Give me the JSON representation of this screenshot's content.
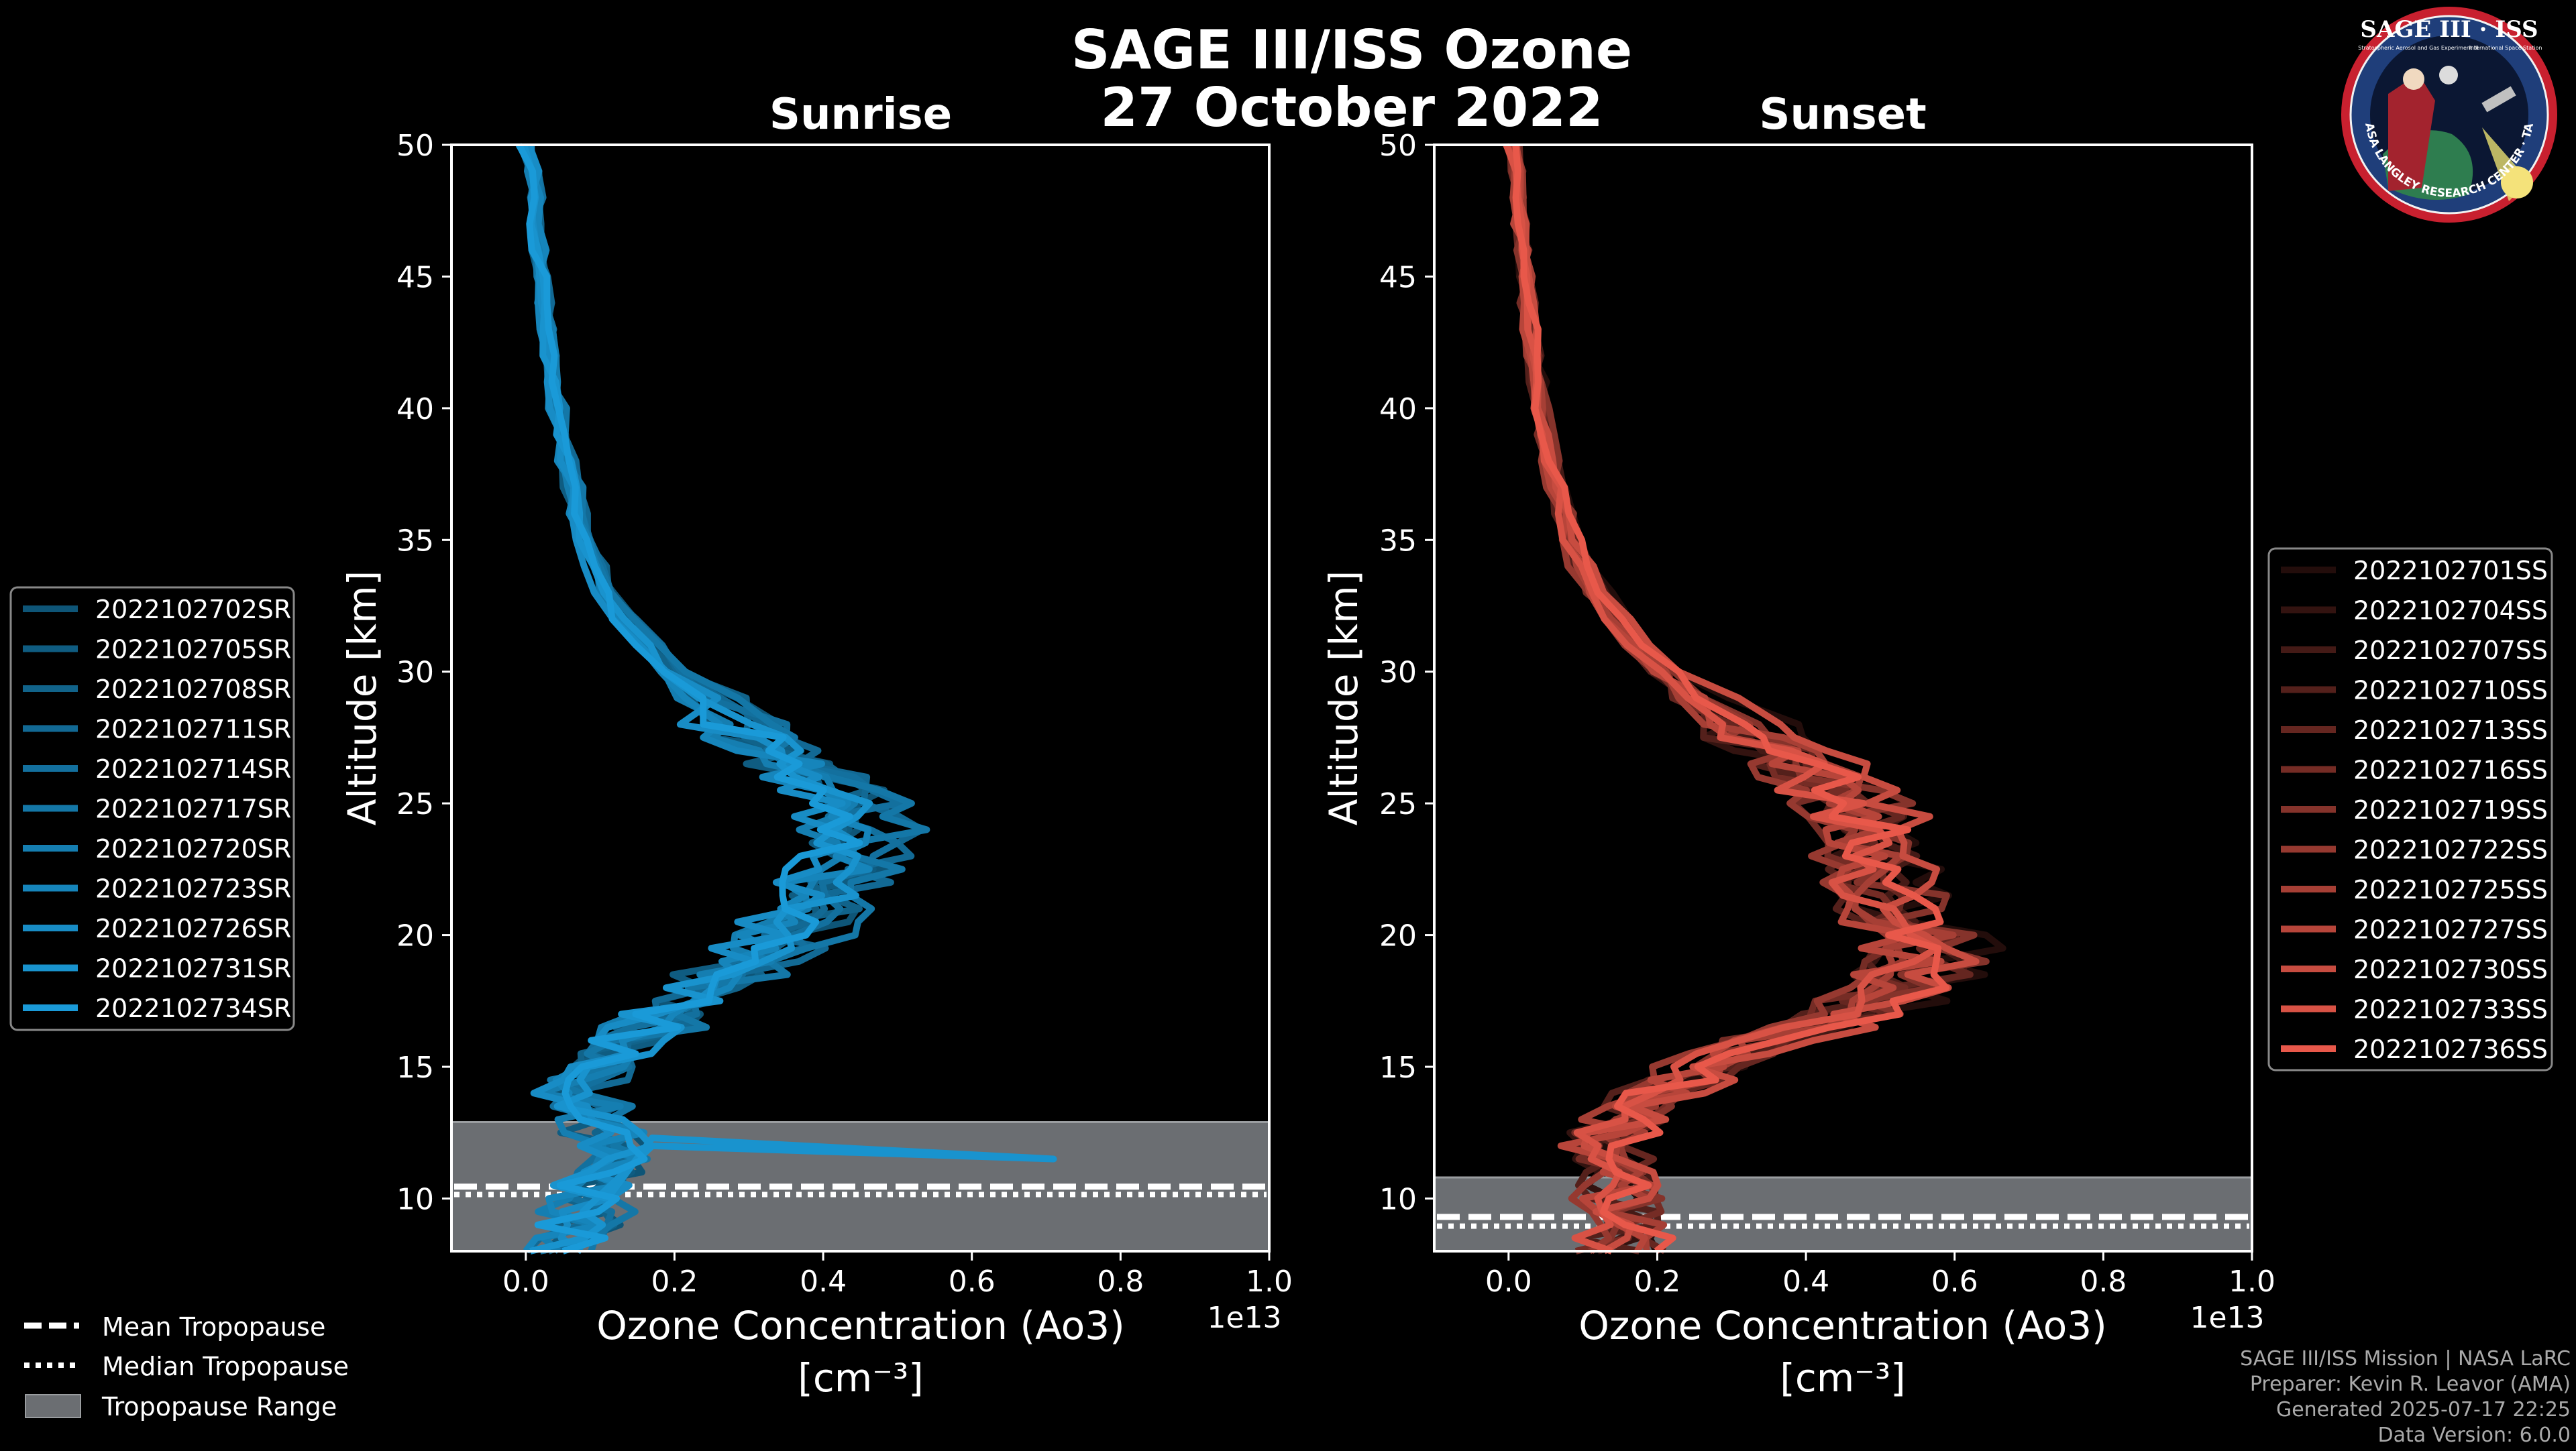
{
  "figure": {
    "title_line1": "SAGE III/ISS Ozone",
    "title_line2": "27 October 2022",
    "credits": [
      "SAGE III/ISS Mission | NASA LaRC",
      "Preparer: Kevin R. Leavor (AMA)",
      "Generated 2025-07-17 22:25",
      "Data Version: 6.0.0"
    ],
    "logo": {
      "icon": "sage-iii-iss-mission-patch-icon",
      "text_top": "SAGE III · ISS",
      "text_small_left": "Stratospheric Aerosol and Gas Experiment III",
      "text_small_right": "International Space Station",
      "text_ring": "BALL · NASA LANGLEY RESEARCH CENTER · TAS-I · ESA"
    },
    "tropopause_legend": {
      "mean": "Mean Tropopause",
      "median": "Median Tropopause",
      "range": "Tropopause Range"
    }
  },
  "chart_data": [
    {
      "type": "line",
      "title": "Sunrise",
      "xlabel_line1": "Ozone Concentration (Ao3)",
      "xlabel_line2": "[cm⁻³]",
      "ylabel": "Altitude [km]",
      "x_multiplier": "1e13",
      "xlim": [
        -0.1,
        1.0
      ],
      "ylim": [
        8,
        50
      ],
      "xticks": [
        0.0,
        0.2,
        0.4,
        0.6,
        0.8,
        1.0
      ],
      "xtick_labels": [
        "0.0",
        "0.2",
        "0.4",
        "0.6",
        "0.8",
        "1.0"
      ],
      "yticks": [
        10,
        15,
        20,
        25,
        30,
        35,
        40,
        45,
        50
      ],
      "color": "#1a9ad8",
      "tropopause": {
        "range": [
          8,
          12.9
        ],
        "mean": 10.45,
        "median": 10.15
      },
      "legend": [
        "2022102702SR",
        "2022102705SR",
        "2022102708SR",
        "2022102711SR",
        "2022102714SR",
        "2022102717SR",
        "2022102720SR",
        "2022102723SR",
        "2022102726SR",
        "2022102731SR",
        "2022102734SR"
      ],
      "profile_altitudes": [
        8,
        9,
        10,
        11,
        12,
        13,
        14,
        15,
        16,
        17,
        18,
        19,
        20,
        21,
        22,
        23,
        24,
        25,
        26,
        27,
        28,
        29,
        30,
        31,
        32,
        33,
        34,
        35,
        36,
        37,
        38,
        39,
        40,
        41,
        42,
        43,
        44,
        45,
        46,
        47,
        48,
        49,
        50
      ],
      "profile_base": [
        0.05,
        0.07,
        0.09,
        0.11,
        0.12,
        0.1,
        0.07,
        0.09,
        0.14,
        0.19,
        0.24,
        0.3,
        0.35,
        0.39,
        0.42,
        0.44,
        0.45,
        0.43,
        0.39,
        0.34,
        0.29,
        0.24,
        0.2,
        0.165,
        0.135,
        0.11,
        0.095,
        0.082,
        0.072,
        0.063,
        0.055,
        0.048,
        0.042,
        0.037,
        0.033,
        0.029,
        0.025,
        0.022,
        0.019,
        0.016,
        0.013,
        0.01,
        0.0
      ],
      "spike": {
        "series": 9,
        "altitude": 11.5,
        "value": 0.71,
        "from_value": 0.17,
        "from_altitude": 12.0
      }
    },
    {
      "type": "line",
      "title": "Sunset",
      "xlabel_line1": "Ozone Concentration (Ao3)",
      "xlabel_line2": "[cm⁻³]",
      "ylabel": "Altitude [km]",
      "x_multiplier": "1e13",
      "xlim": [
        -0.1,
        1.0
      ],
      "ylim": [
        8,
        50
      ],
      "xticks": [
        0.0,
        0.2,
        0.4,
        0.6,
        0.8,
        1.0
      ],
      "xtick_labels": [
        "0.0",
        "0.2",
        "0.4",
        "0.6",
        "0.8",
        "1.0"
      ],
      "yticks": [
        10,
        15,
        20,
        25,
        30,
        35,
        40,
        45,
        50
      ],
      "color": "#e8584a",
      "tropopause": {
        "range": [
          8,
          10.8
        ],
        "mean": 9.3,
        "median": 8.95
      },
      "legend": [
        "2022102701SS",
        "2022102704SS",
        "2022102707SS",
        "2022102710SS",
        "2022102713SS",
        "2022102716SS",
        "2022102719SS",
        "2022102722SS",
        "2022102725SS",
        "2022102727SS",
        "2022102730SS",
        "2022102733SS",
        "2022102736SS"
      ],
      "profile_altitudes": [
        8,
        9,
        10,
        11,
        12,
        13,
        14,
        15,
        16,
        17,
        18,
        19,
        20,
        21,
        22,
        23,
        24,
        25,
        26,
        27,
        28,
        29,
        30,
        31,
        32,
        33,
        34,
        35,
        36,
        37,
        38,
        39,
        40,
        41,
        42,
        43,
        44,
        45,
        46,
        47,
        48,
        49,
        50
      ],
      "profile_base": [
        0.15,
        0.16,
        0.15,
        0.14,
        0.13,
        0.15,
        0.2,
        0.27,
        0.36,
        0.45,
        0.53,
        0.56,
        0.54,
        0.51,
        0.49,
        0.48,
        0.48,
        0.46,
        0.42,
        0.37,
        0.31,
        0.26,
        0.21,
        0.175,
        0.145,
        0.12,
        0.1,
        0.085,
        0.074,
        0.065,
        0.057,
        0.05,
        0.043,
        0.038,
        0.034,
        0.03,
        0.026,
        0.022,
        0.019,
        0.016,
        0.013,
        0.01,
        0.005
      ],
      "spike": null
    }
  ]
}
